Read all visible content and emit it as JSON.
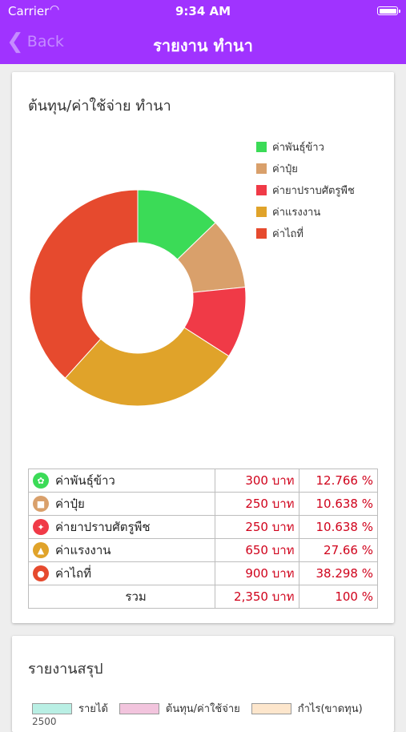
{
  "status_bar": {
    "carrier": "Carrier",
    "time": "9:34 AM"
  },
  "nav": {
    "back_label": "Back",
    "title": "รายงาน ทำนา"
  },
  "cost_card": {
    "title": "ต้นทุน/ค่าใช้จ่าย ทำนา",
    "rows": [
      {
        "name": "ค่าพันธุ์ข้าว",
        "amount": "300 บาท",
        "percent": "12.766 %",
        "color": "#3bdb57",
        "icon": "seed-icon"
      },
      {
        "name": "ค่าปุ๋ย",
        "amount": "250 บาท",
        "percent": "10.638 %",
        "color": "#d9a06b",
        "icon": "fertilizer-icon"
      },
      {
        "name": "ค่ายาปราบศัตรูพืช",
        "amount": "250 บาท",
        "percent": "10.638 %",
        "color": "#f03a47",
        "icon": "pesticide-icon"
      },
      {
        "name": "ค่าแรงงาน",
        "amount": "650 บาท",
        "percent": "27.66 %",
        "color": "#e0a32a",
        "icon": "labor-icon"
      },
      {
        "name": "ค่าไถที่",
        "amount": "900 บาท",
        "percent": "38.298 %",
        "color": "#e64a2e",
        "icon": "plowing-icon"
      }
    ],
    "total": {
      "label": "รวม",
      "amount": "2,350 บาท",
      "percent": "100 %"
    }
  },
  "chart_data": {
    "type": "pie",
    "categories": [
      "ค่าพันธุ์ข้าว",
      "ค่าปุ๋ย",
      "ค่ายาปราบศัตรูพืช",
      "ค่าแรงงาน",
      "ค่าไถที่"
    ],
    "values": [
      300,
      250,
      250,
      650,
      900
    ],
    "colors": [
      "#3bdb57",
      "#d9a06b",
      "#f03a47",
      "#e0a32a",
      "#e64a2e"
    ],
    "title": "ต้นทุน/ค่าใช้จ่าย ทำนา",
    "style": "donut",
    "legend_position": "top-right"
  },
  "summary_card": {
    "title": "รายงานสรุป",
    "legend": [
      {
        "label": "รายได้",
        "color": "#b9efe4"
      },
      {
        "label": "ต้นทุน/ค่าใช้จ่าย",
        "color": "#f2c4dd"
      },
      {
        "label": "กำไร(ขาดทุน)",
        "color": "#fde6cc"
      }
    ],
    "y_tick_top": "2500"
  }
}
